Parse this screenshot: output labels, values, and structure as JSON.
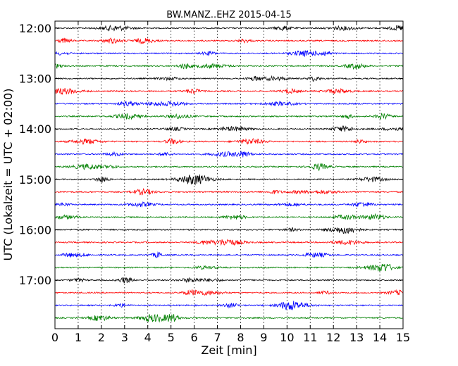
{
  "chart_data": {
    "type": "line",
    "title": "BW.MANZ..EHZ 2015-04-15",
    "xlabel": "Zeit  [min]",
    "ylabel": "UTC (Lokalzeit = UTC + 02:00)",
    "xlim": [
      0,
      15
    ],
    "x_ticks": [
      "0",
      "1",
      "2",
      "3",
      "4",
      "5",
      "6",
      "7",
      "8",
      "9",
      "10",
      "11",
      "12",
      "13",
      "14",
      "15"
    ],
    "y_tick_labels": [
      "12:00",
      "13:00",
      "14:00",
      "15:00",
      "16:00",
      "17:00"
    ],
    "grid": "vertical dotted at each minute",
    "trace_colors": [
      "#000000",
      "#ff0000",
      "#0000ff",
      "#008000"
    ],
    "traces": [
      {
        "start": "12:00",
        "color": "#000000"
      },
      {
        "start": "12:15",
        "color": "#ff0000"
      },
      {
        "start": "12:30",
        "color": "#0000ff"
      },
      {
        "start": "12:45",
        "color": "#008000"
      },
      {
        "start": "13:00",
        "color": "#000000"
      },
      {
        "start": "13:15",
        "color": "#ff0000"
      },
      {
        "start": "13:30",
        "color": "#0000ff"
      },
      {
        "start": "13:45",
        "color": "#008000"
      },
      {
        "start": "14:00",
        "color": "#000000"
      },
      {
        "start": "14:15",
        "color": "#ff0000"
      },
      {
        "start": "14:30",
        "color": "#0000ff"
      },
      {
        "start": "14:45",
        "color": "#008000"
      },
      {
        "start": "15:00",
        "color": "#000000"
      },
      {
        "start": "15:15",
        "color": "#ff0000"
      },
      {
        "start": "15:30",
        "color": "#0000ff"
      },
      {
        "start": "15:45",
        "color": "#008000"
      },
      {
        "start": "16:00",
        "color": "#000000"
      },
      {
        "start": "16:15",
        "color": "#ff0000"
      },
      {
        "start": "16:30",
        "color": "#0000ff"
      },
      {
        "start": "16:45",
        "color": "#008000"
      },
      {
        "start": "17:00",
        "color": "#000000"
      },
      {
        "start": "17:15",
        "color": "#ff0000"
      },
      {
        "start": "17:30",
        "color": "#0000ff"
      },
      {
        "start": "17:45",
        "color": "#008000"
      }
    ]
  }
}
